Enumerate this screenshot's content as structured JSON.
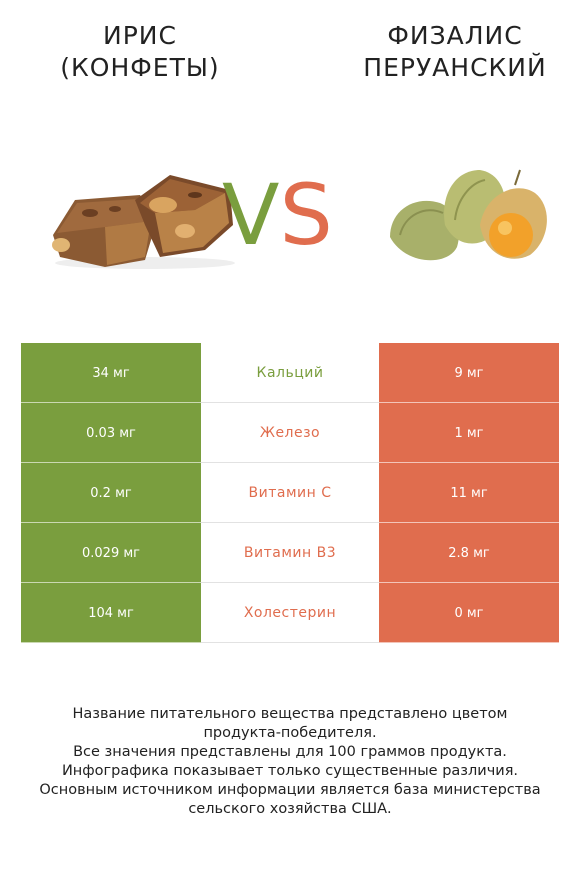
{
  "colors": {
    "left": "#7a9e3e",
    "right": "#e06d4e",
    "vs_v": "#7a9e3e",
    "vs_s": "#e06d4e"
  },
  "left_title": [
    "ИРИС",
    "(КОНФЕТЫ)"
  ],
  "right_title": [
    "ФИЗАЛИС",
    "ПЕРУАНСКИЙ"
  ],
  "vs": {
    "v": "V",
    "s": "S"
  },
  "rows": [
    {
      "left": "34 мг",
      "nutrient": "Кальций",
      "right": "9 мг",
      "winner": "left"
    },
    {
      "left": "0.03 мг",
      "nutrient": "Железо",
      "right": "1 мг",
      "winner": "right"
    },
    {
      "left": "0.2 мг",
      "nutrient": "Витамин C",
      "right": "11 мг",
      "winner": "right"
    },
    {
      "left": "0.029 мг",
      "nutrient": "Витамин B3",
      "right": "2.8 мг",
      "winner": "right"
    },
    {
      "left": "104 мг",
      "nutrient": "Холестерин",
      "right": "0 мг",
      "winner": "right"
    }
  ],
  "footer": [
    "Название питательного вещества представлено цветом",
    "продукта-победителя.",
    "Все значения представлены для 100 граммов продукта.",
    "Инфографика показывает только существенные различия.",
    "Основным источником информации является база министерства",
    "сельского хозяйства США."
  ]
}
